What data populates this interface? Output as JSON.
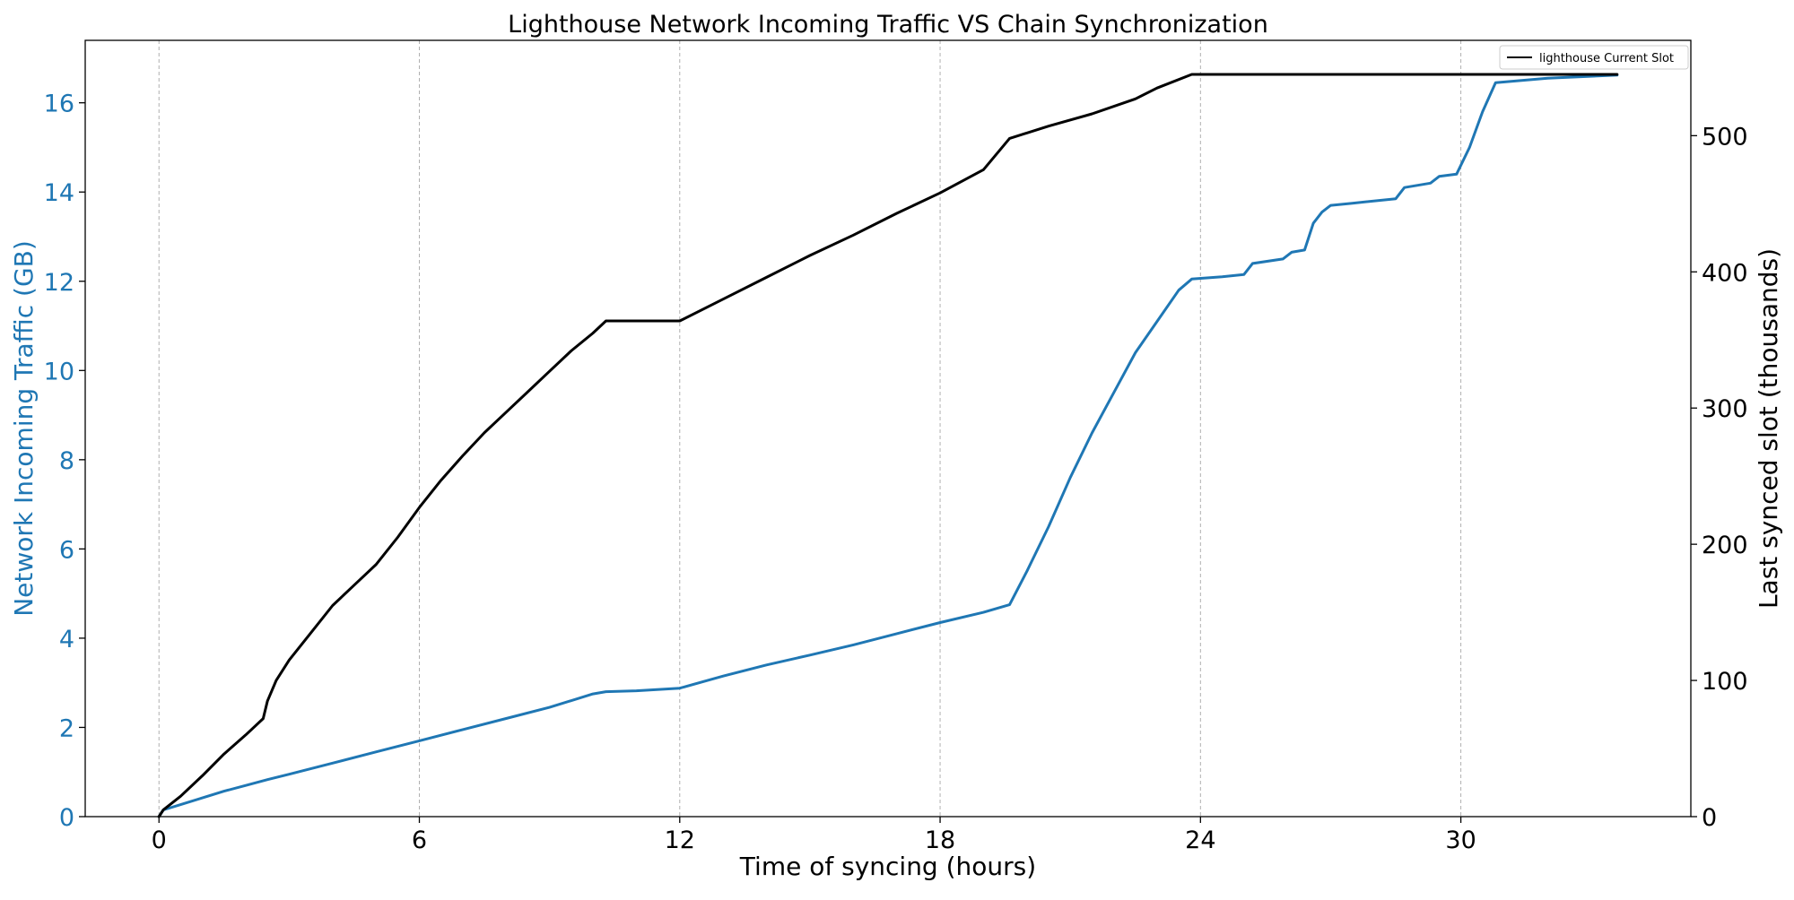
{
  "chart_data": {
    "type": "line",
    "title": "Lighthouse Network Incoming Traffic VS Chain Synchronization",
    "xlabel": "Time of syncing (hours)",
    "ylabel_left": "Network Incoming Traffic (GB)",
    "ylabel_right": "Last synced slot (thousands)",
    "xlim": [
      -1.7,
      35.3
    ],
    "ylim_left": [
      0,
      17.4
    ],
    "ylim_right": [
      0,
      570
    ],
    "x_ticks": [
      0,
      6,
      12,
      18,
      24,
      30
    ],
    "x_tick_labels": [
      "0",
      "6",
      "12",
      "18",
      "24",
      "30"
    ],
    "y_left_ticks": [
      0,
      2,
      4,
      6,
      8,
      10,
      12,
      14,
      16
    ],
    "y_left_tick_labels": [
      "0",
      "2",
      "4",
      "6",
      "8",
      "10",
      "12",
      "14",
      "16"
    ],
    "y_right_ticks": [
      0,
      100,
      200,
      300,
      400,
      500
    ],
    "y_right_tick_labels": [
      "0",
      "100",
      "200",
      "300",
      "400",
      "500"
    ],
    "grid": "vertical dashed at x ticks",
    "legend": {
      "position": "top-right",
      "entries": [
        "lighthouse Current Slot"
      ]
    },
    "colors": {
      "traffic": "#1f77b4",
      "slot": "#000000",
      "grid": "#b0b0b0",
      "left_axis_text": "#1f77b4",
      "right_axis_text": "#000000"
    },
    "series": [
      {
        "name": "",
        "axis": "left",
        "color": "#1f77b4",
        "points": [
          [
            0,
            0.0
          ],
          [
            0.1,
            0.15
          ],
          [
            0.5,
            0.27
          ],
          [
            1.0,
            0.42
          ],
          [
            1.5,
            0.57
          ],
          [
            2.0,
            0.7
          ],
          [
            2.5,
            0.83
          ],
          [
            3.0,
            0.95
          ],
          [
            4.0,
            1.2
          ],
          [
            5.0,
            1.45
          ],
          [
            6.0,
            1.7
          ],
          [
            7.0,
            1.95
          ],
          [
            8.0,
            2.2
          ],
          [
            9.0,
            2.45
          ],
          [
            10.0,
            2.75
          ],
          [
            10.3,
            2.8
          ],
          [
            11.0,
            2.82
          ],
          [
            12.0,
            2.88
          ],
          [
            13.0,
            3.15
          ],
          [
            14.0,
            3.4
          ],
          [
            15.0,
            3.62
          ],
          [
            16.0,
            3.85
          ],
          [
            17.0,
            4.1
          ],
          [
            18.0,
            4.35
          ],
          [
            19.0,
            4.58
          ],
          [
            19.6,
            4.75
          ],
          [
            20.0,
            5.5
          ],
          [
            20.5,
            6.5
          ],
          [
            21.0,
            7.6
          ],
          [
            21.5,
            8.6
          ],
          [
            22.0,
            9.5
          ],
          [
            22.5,
            10.4
          ],
          [
            23.0,
            11.1
          ],
          [
            23.5,
            11.8
          ],
          [
            23.8,
            12.05
          ],
          [
            24.5,
            12.1
          ],
          [
            25.0,
            12.15
          ],
          [
            25.2,
            12.4
          ],
          [
            25.9,
            12.5
          ],
          [
            26.1,
            12.65
          ],
          [
            26.4,
            12.7
          ],
          [
            26.6,
            13.3
          ],
          [
            26.8,
            13.55
          ],
          [
            27.0,
            13.7
          ],
          [
            27.5,
            13.75
          ],
          [
            28.5,
            13.85
          ],
          [
            28.7,
            14.1
          ],
          [
            29.3,
            14.2
          ],
          [
            29.5,
            14.35
          ],
          [
            29.9,
            14.4
          ],
          [
            30.2,
            15.0
          ],
          [
            30.5,
            15.8
          ],
          [
            30.8,
            16.45
          ],
          [
            32.0,
            16.55
          ],
          [
            33.6,
            16.62
          ]
        ]
      },
      {
        "name": "lighthouse Current Slot",
        "axis": "right",
        "color": "#000000",
        "points": [
          [
            0,
            0
          ],
          [
            0.1,
            5
          ],
          [
            0.5,
            15
          ],
          [
            1.0,
            30
          ],
          [
            1.5,
            46
          ],
          [
            2.0,
            60
          ],
          [
            2.4,
            72
          ],
          [
            2.5,
            85
          ],
          [
            2.7,
            100
          ],
          [
            3.0,
            115
          ],
          [
            3.5,
            135
          ],
          [
            4.0,
            155
          ],
          [
            4.5,
            170
          ],
          [
            5.0,
            185
          ],
          [
            5.5,
            205
          ],
          [
            6.0,
            227
          ],
          [
            6.5,
            247
          ],
          [
            7.0,
            265
          ],
          [
            7.5,
            282
          ],
          [
            8.0,
            297
          ],
          [
            8.5,
            312
          ],
          [
            9.0,
            327
          ],
          [
            9.5,
            342
          ],
          [
            10.0,
            355
          ],
          [
            10.3,
            364
          ],
          [
            12.0,
            364
          ],
          [
            13.0,
            380
          ],
          [
            14.0,
            396
          ],
          [
            15.0,
            412
          ],
          [
            16.0,
            427
          ],
          [
            17.0,
            443
          ],
          [
            18.0,
            458
          ],
          [
            19.0,
            475
          ],
          [
            19.6,
            498
          ],
          [
            20.5,
            507
          ],
          [
            21.5,
            516
          ],
          [
            22.5,
            527
          ],
          [
            23.0,
            535
          ],
          [
            23.8,
            545
          ],
          [
            33.6,
            545
          ]
        ]
      }
    ]
  }
}
